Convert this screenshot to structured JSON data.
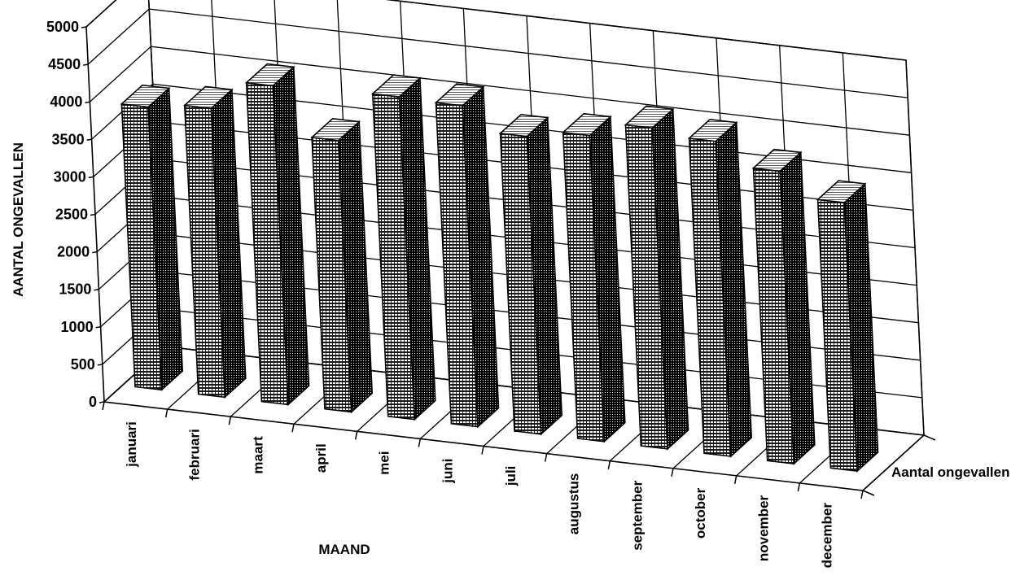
{
  "chart_data": {
    "type": "bar",
    "title": "",
    "xlabel": "MAAND",
    "ylabel": "AANTAL ONGEVALLEN",
    "ylim": [
      0,
      5000
    ],
    "yticks": [
      "0",
      "500",
      "1000",
      "1500",
      "2000",
      "2500",
      "3000",
      "3500",
      "4000",
      "4500",
      "5000"
    ],
    "grid": true,
    "categories": [
      "januari",
      "februari",
      "maart",
      "april",
      "mei",
      "juni",
      "juli",
      "augustus",
      "september",
      "october",
      "november",
      "december"
    ],
    "series": [
      {
        "name": "Aantal ongevallen",
        "values": [
          3770,
          3850,
          4250,
          3620,
          4300,
          4280,
          3970,
          4080,
          4280,
          4200,
          3900,
          3580
        ]
      }
    ],
    "colors": {
      "bar_front": "#707070",
      "bar_side": "#404040",
      "bar_top": "#f4f4f4",
      "line": "#000000"
    }
  }
}
